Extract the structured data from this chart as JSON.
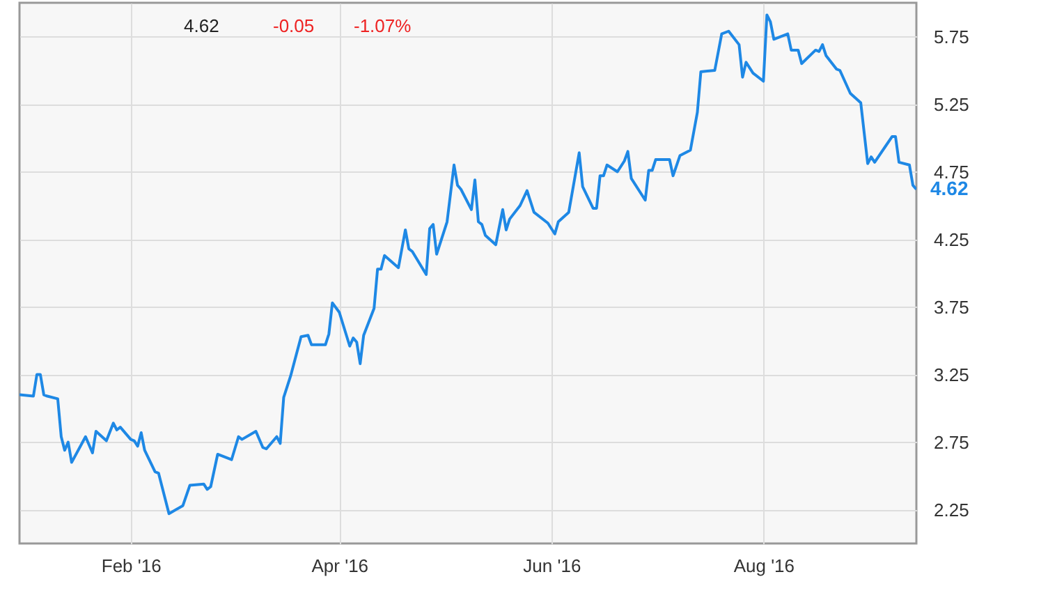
{
  "chart_data": {
    "type": "line",
    "x": [
      "2015-12-31",
      "2016-01-04",
      "2016-01-05",
      "2016-01-06",
      "2016-01-07",
      "2016-01-08",
      "2016-01-11",
      "2016-01-12",
      "2016-01-13",
      "2016-01-14",
      "2016-01-15",
      "2016-01-19",
      "2016-01-21",
      "2016-01-22",
      "2016-01-25",
      "2016-01-27",
      "2016-01-28",
      "2016-01-29",
      "2016-02-01",
      "2016-02-02",
      "2016-02-03",
      "2016-02-04",
      "2016-02-05",
      "2016-02-08",
      "2016-02-09",
      "2016-02-12",
      "2016-02-16",
      "2016-02-18",
      "2016-02-22",
      "2016-02-23",
      "2016-02-24",
      "2016-02-26",
      "2016-03-01",
      "2016-03-03",
      "2016-03-04",
      "2016-03-08",
      "2016-03-10",
      "2016-03-11",
      "2016-03-14",
      "2016-03-15",
      "2016-03-16",
      "2016-03-18",
      "2016-03-21",
      "2016-03-23",
      "2016-03-24",
      "2016-03-28",
      "2016-03-29",
      "2016-03-30",
      "2016-04-01",
      "2016-04-04",
      "2016-04-05",
      "2016-04-06",
      "2016-04-07",
      "2016-04-08",
      "2016-04-11",
      "2016-04-12",
      "2016-04-13",
      "2016-04-14",
      "2016-04-18",
      "2016-04-20",
      "2016-04-21",
      "2016-04-22",
      "2016-04-26",
      "2016-04-27",
      "2016-04-28",
      "2016-04-29",
      "2016-05-02",
      "2016-05-04",
      "2016-05-05",
      "2016-05-06",
      "2016-05-09",
      "2016-05-10",
      "2016-05-11",
      "2016-05-12",
      "2016-05-13",
      "2016-05-16",
      "2016-05-18",
      "2016-05-19",
      "2016-05-20",
      "2016-05-23",
      "2016-05-25",
      "2016-05-27",
      "2016-05-31",
      "2016-06-02",
      "2016-06-03",
      "2016-06-06",
      "2016-06-09",
      "2016-06-10",
      "2016-06-13",
      "2016-06-14",
      "2016-06-15",
      "2016-06-16",
      "2016-06-17",
      "2016-06-20",
      "2016-06-22",
      "2016-06-23",
      "2016-06-24",
      "2016-06-28",
      "2016-06-29",
      "2016-06-30",
      "2016-07-01",
      "2016-07-05",
      "2016-07-06",
      "2016-07-08",
      "2016-07-11",
      "2016-07-13",
      "2016-07-14",
      "2016-07-18",
      "2016-07-20",
      "2016-07-22",
      "2016-07-25",
      "2016-07-26",
      "2016-07-27",
      "2016-07-29",
      "2016-08-01",
      "2016-08-02",
      "2016-08-03",
      "2016-08-04",
      "2016-08-08",
      "2016-08-09",
      "2016-08-11",
      "2016-08-12",
      "2016-08-16",
      "2016-08-17",
      "2016-08-18",
      "2016-08-19",
      "2016-08-22",
      "2016-08-23",
      "2016-08-26",
      "2016-08-29",
      "2016-08-31",
      "2016-09-01",
      "2016-09-02",
      "2016-09-07",
      "2016-09-08",
      "2016-09-09",
      "2016-09-12",
      "2016-09-13",
      "2016-09-14"
    ],
    "series": [
      {
        "color": "#1e88e5",
        "values": [
          3.1,
          3.09,
          3.25,
          3.25,
          3.1,
          3.09,
          3.07,
          2.79,
          2.69,
          2.75,
          2.6,
          2.79,
          2.67,
          2.83,
          2.76,
          2.89,
          2.84,
          2.86,
          2.77,
          2.76,
          2.72,
          2.82,
          2.69,
          2.53,
          2.52,
          2.22,
          2.28,
          2.43,
          2.44,
          2.4,
          2.42,
          2.66,
          2.62,
          2.79,
          2.77,
          2.83,
          2.71,
          2.7,
          2.79,
          2.74,
          3.08,
          3.24,
          3.53,
          3.54,
          3.47,
          3.47,
          3.55,
          3.78,
          3.71,
          3.46,
          3.52,
          3.49,
          3.33,
          3.54,
          3.74,
          4.03,
          4.03,
          4.13,
          4.04,
          4.32,
          4.18,
          4.16,
          3.99,
          4.33,
          4.36,
          4.14,
          4.38,
          4.8,
          4.65,
          4.62,
          4.47,
          4.69,
          4.38,
          4.36,
          4.28,
          4.21,
          4.47,
          4.32,
          4.4,
          4.5,
          4.61,
          4.45,
          4.37,
          4.29,
          4.38,
          4.45,
          4.89,
          4.64,
          4.48,
          4.48,
          4.72,
          4.72,
          4.8,
          4.75,
          4.83,
          4.9,
          4.7,
          4.54,
          4.76,
          4.76,
          4.84,
          4.84,
          4.72,
          4.87,
          4.91,
          5.19,
          5.49,
          5.5,
          5.77,
          5.79,
          5.69,
          5.45,
          5.56,
          5.48,
          5.42,
          5.91,
          5.86,
          5.73,
          5.77,
          5.65,
          5.65,
          5.55,
          5.65,
          5.64,
          5.69,
          5.61,
          5.51,
          5.5,
          5.33,
          5.26,
          4.81,
          4.86,
          4.82,
          5.01,
          5.01,
          4.82,
          4.8,
          4.65,
          4.62
        ]
      }
    ],
    "xlim": [
      "2015-12-31",
      "2016-09-14"
    ],
    "xticks": [
      {
        "value": "2016-02-01",
        "label": "Feb '16"
      },
      {
        "value": "2016-04-01",
        "label": "Apr '16"
      },
      {
        "value": "2016-06-01",
        "label": "Jun '16"
      },
      {
        "value": "2016-08-01",
        "label": "Aug '16"
      }
    ],
    "ylim": [
      2.0,
      6.0
    ],
    "yticks": [
      2.25,
      2.75,
      3.25,
      3.75,
      4.25,
      4.75,
      5.25,
      5.75
    ],
    "grid": true,
    "annotations": [
      "4.62",
      "-0.05",
      "-1.07%",
      {
        "text": "4.62",
        "x": "2016-09-14",
        "y": 4.62
      }
    ]
  }
}
